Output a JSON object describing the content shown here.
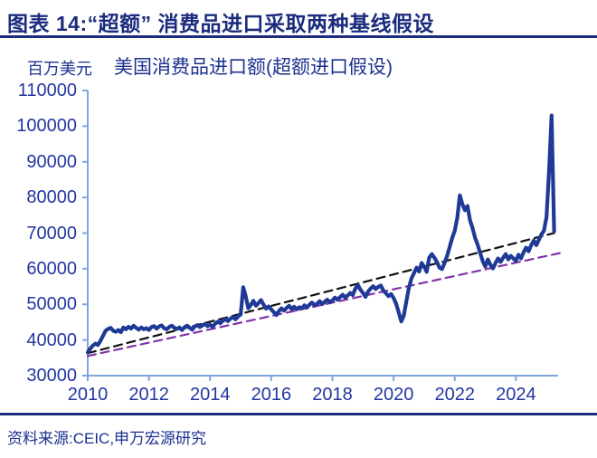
{
  "header": {
    "title": "图表 14:“超额” 消费品进口采取两种基线假设"
  },
  "chart": {
    "unit_label": "百万美元",
    "title": "美国消费品进口额(超额进口假设)"
  },
  "footer": {
    "source": "资料来源:CEIC,申万宏源研究"
  },
  "colors": {
    "navy": "#1B2C7E",
    "title_text": "#1B2C7E",
    "subtitle_text": "#1C308F",
    "axis_label": "#2336A2",
    "axis_line": "#7CA6DC",
    "line": "#1E3A96",
    "baseline_black": "#111111",
    "baseline_purple": "#8233AC"
  },
  "chart_data": {
    "type": "line",
    "title": "美国消费品进口额(超额进口假设)",
    "ylabel": "百万美元",
    "xlabel": "",
    "ylim": [
      30000,
      110000
    ],
    "xlim": [
      2010,
      2025.38
    ],
    "yticks": [
      30000,
      40000,
      50000,
      60000,
      70000,
      80000,
      90000,
      100000,
      110000
    ],
    "xticks": [
      2010,
      2012,
      2014,
      2016,
      2018,
      2020,
      2022,
      2024
    ],
    "grid": false,
    "legend_position": "none",
    "series": [
      {
        "name": "美国消费品进口额(月度)",
        "style": "solid",
        "color_key": "line",
        "width": 4.2,
        "x_start": 2010.0,
        "x_step_months": 1,
        "values": [
          36500,
          37600,
          38400,
          39000,
          38600,
          39800,
          41200,
          42600,
          43100,
          43400,
          42600,
          42300,
          42800,
          42200,
          43500,
          43000,
          43700,
          43200,
          44000,
          43400,
          42900,
          43500,
          43000,
          43300,
          42800,
          43600,
          43900,
          43200,
          43800,
          44100,
          43300,
          43000,
          43700,
          44000,
          43400,
          43100,
          43500,
          42800,
          43600,
          44000,
          43400,
          42900,
          43800,
          44200,
          43600,
          44100,
          44500,
          43900,
          44300,
          43700,
          44600,
          45100,
          44700,
          45400,
          45900,
          45300,
          46000,
          46400,
          45800,
          46600,
          47200,
          54800,
          52200,
          48900,
          49800,
          51000,
          49600,
          50400,
          51200,
          49900,
          48800,
          49400,
          48600,
          47800,
          47000,
          48100,
          48900,
          48200,
          49000,
          49600,
          48700,
          49300,
          48600,
          49200,
          48900,
          49700,
          49100,
          49900,
          50500,
          49700,
          50200,
          50900,
          50100,
          50700,
          51300,
          50600,
          51100,
          51900,
          51300,
          52000,
          52700,
          51900,
          52500,
          53200,
          52600,
          54400,
          55400,
          54100,
          53200,
          52100,
          53600,
          54400,
          55100,
          54300,
          54900,
          55300,
          53900,
          53100,
          52300,
          52900,
          51800,
          50200,
          47800,
          45200,
          46800,
          50800,
          54600,
          57200,
          58700,
          60300,
          59200,
          61600,
          60600,
          59100,
          63100,
          64100,
          63100,
          61900,
          60300,
          59900,
          61600,
          63600,
          66100,
          68600,
          70600,
          74200,
          80600,
          78100,
          76400,
          77600,
          73600,
          71400,
          68600,
          66700,
          64400,
          62100,
          60600,
          62600,
          61100,
          60100,
          61600,
          62900,
          61900,
          63100,
          64100,
          62600,
          63600,
          62900,
          62200,
          63900,
          62900,
          64600,
          65900,
          64900,
          66600,
          67900,
          66600,
          68100,
          69600,
          70600,
          74500,
          87500,
          103000,
          70500
        ]
      },
      {
        "name": "基线假设一(黑色虚线趋势)",
        "style": "dashed",
        "color_key": "baseline_black",
        "width": 2.2,
        "x": [
          2010.0,
          2025.25
        ],
        "values": [
          36300,
          70000
        ]
      },
      {
        "name": "基线假设二(紫色虚线趋势)",
        "style": "dashed",
        "color_key": "baseline_purple",
        "width": 2.2,
        "x": [
          2010.0,
          2025.6
        ],
        "values": [
          35500,
          64700
        ]
      }
    ]
  }
}
